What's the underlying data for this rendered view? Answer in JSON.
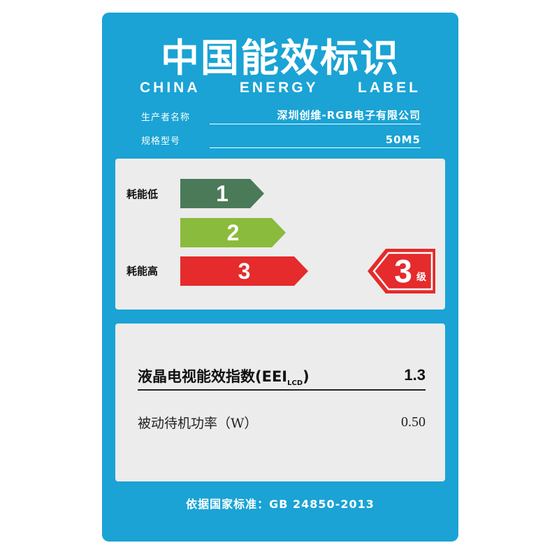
{
  "header": {
    "title_cn": "中国能效标识",
    "title_en_words": [
      "CHINA",
      "ENERGY",
      "LABEL"
    ]
  },
  "info": {
    "manufacturer_key": "生产者名称",
    "manufacturer_value": "深圳创维-RGB电子有限公司",
    "model_key": "规格型号",
    "model_value": "50M5"
  },
  "grades": {
    "low_label": "耗能低",
    "high_label": "耗能高",
    "levels": [
      "1",
      "2",
      "3"
    ],
    "colors": [
      "#4a7a58",
      "#8bbb3c",
      "#e52b2b"
    ],
    "current": "3",
    "current_unit": "级",
    "indicator_color": "#e52b2b"
  },
  "metrics": {
    "eei_label": "液晶电视能效指数(EEI",
    "eei_sub": "LCD",
    "eei_close": ")",
    "eei_value": "1.3",
    "standby_label": "被动待机功率（W）",
    "standby_value": "0.50"
  },
  "footer": {
    "standard": "依据国家标准：GB 24850-2013"
  },
  "theme": {
    "background": "#1aa3d4",
    "panel": "#ececec"
  }
}
